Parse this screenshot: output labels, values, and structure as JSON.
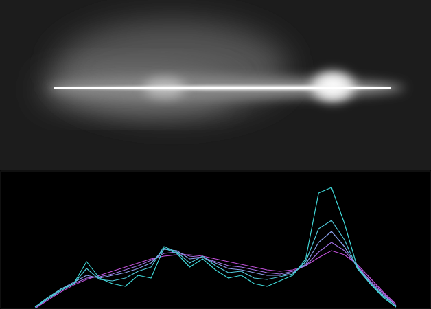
{
  "chart_data": {
    "type": "line",
    "x": [
      8,
      11,
      14,
      17,
      20,
      23,
      26,
      29,
      32,
      35,
      38,
      41,
      44,
      47,
      50,
      53,
      56,
      59,
      62,
      65,
      68,
      71,
      74,
      77,
      80,
      83,
      86,
      89,
      92
    ],
    "xlim": [
      0,
      100
    ],
    "ylim": [
      0,
      100
    ],
    "xticks": [],
    "yticks": [],
    "tick_labels": false,
    "grid": false,
    "series": [
      {
        "color": "#c050d8",
        "values": [
          0,
          6,
          12,
          17,
          21,
          24,
          27,
          30,
          33,
          36,
          38,
          39,
          39,
          38,
          36,
          34,
          32,
          30,
          28,
          27,
          28,
          31,
          37,
          42,
          39,
          32,
          22,
          12,
          3
        ]
      },
      {
        "color": "#a070e0",
        "values": [
          0,
          7,
          13,
          18,
          22,
          23,
          25,
          28,
          31,
          35,
          40,
          41,
          38,
          37,
          34,
          31,
          30,
          28,
          26,
          25,
          27,
          31,
          41,
          48,
          42,
          31,
          20,
          11,
          2
        ]
      },
      {
        "color": "#8aa0e8",
        "values": [
          1,
          7,
          14,
          19,
          24,
          22,
          24,
          26,
          29,
          33,
          43,
          42,
          36,
          37,
          33,
          29,
          28,
          26,
          24,
          24,
          26,
          32,
          48,
          56,
          45,
          30,
          19,
          10,
          2
        ]
      },
      {
        "color": "#50c8d8",
        "values": [
          1,
          8,
          14,
          18,
          29,
          21,
          20,
          22,
          27,
          30,
          45,
          41,
          33,
          38,
          31,
          26,
          27,
          22,
          21,
          23,
          25,
          34,
          58,
          64,
          50,
          29,
          18,
          9,
          1
        ]
      },
      {
        "color": "#40d8d8",
        "values": [
          1,
          7,
          13,
          18,
          34,
          22,
          18,
          16,
          24,
          22,
          44,
          40,
          30,
          36,
          28,
          22,
          24,
          18,
          16,
          20,
          24,
          36,
          84,
          88,
          62,
          30,
          18,
          8,
          1
        ]
      }
    ]
  }
}
